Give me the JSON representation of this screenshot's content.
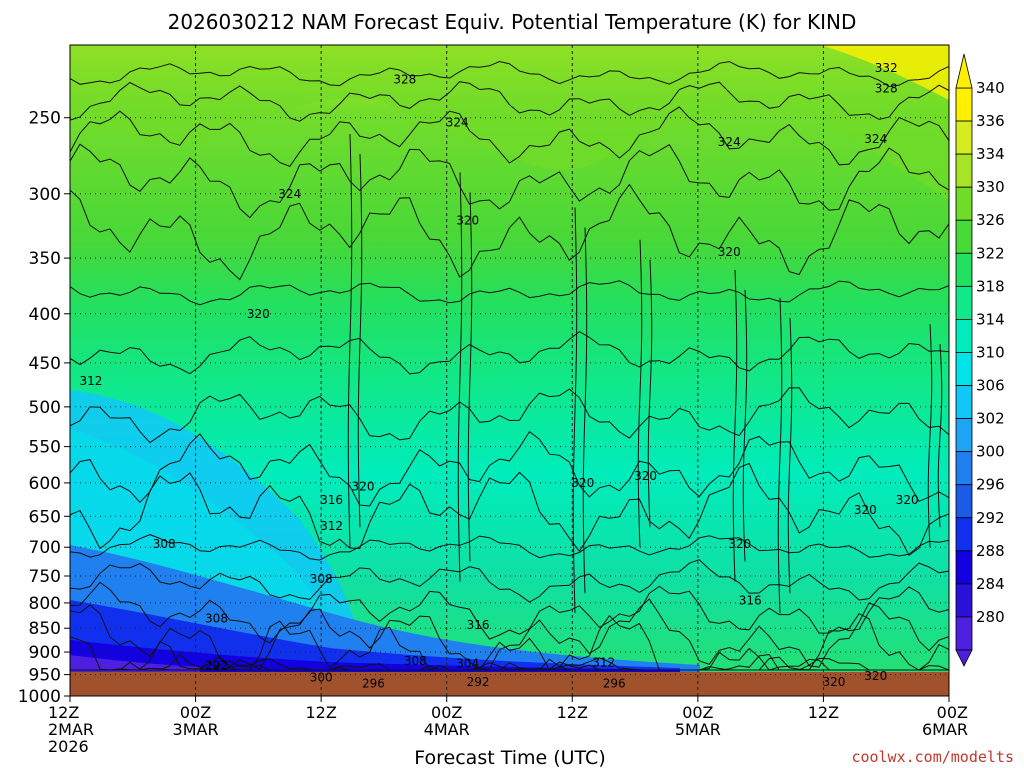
{
  "chart_data": {
    "type": "heatmap",
    "title": "2026030212 NAM Forecast Equiv. Potential Temperature (K) for KIND",
    "xlabel": "Forecast Time (UTC)",
    "ylabel": "",
    "credit": "coolwx.com/modelts",
    "y_axis": {
      "scale": "pressure (log)",
      "ticks": [
        250,
        300,
        350,
        400,
        450,
        500,
        550,
        600,
        650,
        700,
        750,
        800,
        850,
        900,
        950,
        1000
      ],
      "tick_labels": [
        "250",
        "300",
        "350",
        "400",
        "450",
        "500",
        "550",
        "600",
        "650",
        "700",
        "750",
        "800",
        "850",
        "900",
        "950",
        "1000"
      ],
      "top": 210,
      "bottom": 1000,
      "ground_level": 990
    },
    "x_axis": {
      "ticks": [
        0,
        12,
        24,
        36,
        48,
        60,
        72,
        84
      ],
      "tick_labels": [
        [
          "12Z",
          "2MAR",
          "2026"
        ],
        [
          "00Z",
          "3MAR"
        ],
        [
          "12Z"
        ],
        [
          "00Z",
          "4MAR"
        ],
        [
          "12Z"
        ],
        [
          "00Z",
          "5MAR"
        ],
        [
          "12Z"
        ],
        [
          "00Z",
          "6MAR"
        ]
      ],
      "range": [
        0,
        84
      ]
    },
    "colorbar": {
      "values": [
        280,
        284,
        288,
        292,
        296,
        300,
        302,
        306,
        310,
        314,
        318,
        322,
        326,
        330,
        334,
        336,
        340
      ],
      "labels": [
        "280",
        "284",
        "288",
        "292",
        "296",
        "300",
        "302",
        "306",
        "310",
        "314",
        "318",
        "322",
        "326",
        "330",
        "334",
        "336",
        "340"
      ],
      "colors": [
        "#4d1fe0",
        "#2a10d8",
        "#1200e0",
        "#1130ee",
        "#1c5ae8",
        "#2080f0",
        "#1ea4f4",
        "#10c8f8",
        "#00e4e8",
        "#00ecbc",
        "#10e88a",
        "#22e060",
        "#48d838",
        "#70dc28",
        "#a8e426",
        "#d6ec20",
        "#fff000"
      ]
    },
    "contour_labels": [
      {
        "text": "332",
        "x": 78,
        "p": 222
      },
      {
        "text": "328",
        "x": 32,
        "p": 228
      },
      {
        "text": "328",
        "x": 78,
        "p": 233
      },
      {
        "text": "324",
        "x": 37,
        "p": 253
      },
      {
        "text": "324",
        "x": 63,
        "p": 265
      },
      {
        "text": "324",
        "x": 77,
        "p": 263
      },
      {
        "text": "324",
        "x": 21,
        "p": 300
      },
      {
        "text": "320",
        "x": 38,
        "p": 320
      },
      {
        "text": "320",
        "x": 63,
        "p": 345
      },
      {
        "text": "320",
        "x": 18,
        "p": 400
      },
      {
        "text": "312",
        "x": 2,
        "p": 470
      },
      {
        "text": "316",
        "x": 25,
        "p": 625
      },
      {
        "text": "320",
        "x": 28,
        "p": 605
      },
      {
        "text": "320",
        "x": 49,
        "p": 600
      },
      {
        "text": "320",
        "x": 55,
        "p": 590
      },
      {
        "text": "320",
        "x": 76,
        "p": 640
      },
      {
        "text": "320",
        "x": 80,
        "p": 625
      },
      {
        "text": "312",
        "x": 25,
        "p": 665
      },
      {
        "text": "308",
        "x": 9,
        "p": 695
      },
      {
        "text": "308",
        "x": 24,
        "p": 755
      },
      {
        "text": "320",
        "x": 64,
        "p": 695
      },
      {
        "text": "316",
        "x": 65,
        "p": 795
      },
      {
        "text": "308",
        "x": 14,
        "p": 830
      },
      {
        "text": "316",
        "x": 39,
        "p": 843
      },
      {
        "text": "308",
        "x": 33,
        "p": 920
      },
      {
        "text": "304",
        "x": 38,
        "p": 925
      },
      {
        "text": "312",
        "x": 51,
        "p": 923
      },
      {
        "text": "292",
        "x": 14,
        "p": 930
      },
      {
        "text": "300",
        "x": 24,
        "p": 957
      },
      {
        "text": "296",
        "x": 29,
        "p": 970
      },
      {
        "text": "292",
        "x": 39,
        "p": 967
      },
      {
        "text": "296",
        "x": 52,
        "p": 970
      },
      {
        "text": "320",
        "x": 73,
        "p": 967
      },
      {
        "text": "320",
        "x": 77,
        "p": 953
      }
    ]
  }
}
